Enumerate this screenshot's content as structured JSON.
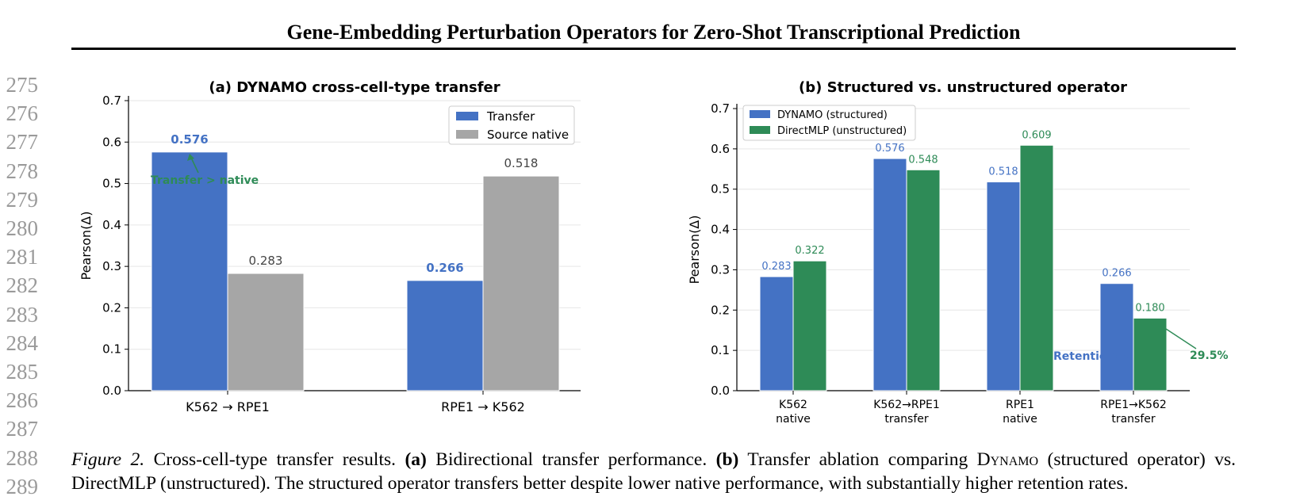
{
  "header": {
    "title": "Gene-Embedding Perturbation Operators for Zero-Shot Transcriptional Prediction"
  },
  "line_numbers": [
    "275",
    "276",
    "277",
    "278",
    "279",
    "280",
    "281",
    "282",
    "283",
    "284",
    "285",
    "286",
    "287",
    "288",
    "289"
  ],
  "caption": {
    "figure_label": "Figure 2.",
    "lead": "Cross-cell-type transfer results.",
    "part_a_label": "(a)",
    "part_a_text": "Bidirectional transfer performance.",
    "part_b_label": "(b)",
    "part_b_text_1": "Transfer ablation comparing",
    "dynamo_D": "D",
    "dynamo_rest": "ynamo",
    "part_b_text_2": "(structured operator) vs. DirectMLP (unstructured). The structured operator transfers better despite lower native performance, with substantially higher retention rates."
  },
  "colors": {
    "blue": "#4472c4",
    "gray": "#a6a6a6",
    "green": "#2e8b57",
    "blue_text": "#4472c4",
    "green_text": "#2e8b57"
  },
  "chart_data": [
    {
      "type": "bar",
      "title": "(a) DYNAMO cross-cell-type transfer",
      "ylabel": "Pearson(Δ)",
      "ylim": [
        0,
        0.7
      ],
      "yticks": [
        "0.0",
        "0.1",
        "0.2",
        "0.3",
        "0.4",
        "0.5",
        "0.6",
        "0.7"
      ],
      "categories": [
        "K562 → RPE1",
        "RPE1 → K562"
      ],
      "series": [
        {
          "name": "Transfer",
          "values": [
            0.576,
            0.266
          ],
          "labels": [
            "0.576",
            "0.266"
          ]
        },
        {
          "name": "Source native",
          "values": [
            0.283,
            0.518
          ],
          "labels": [
            "0.283",
            "0.518"
          ]
        }
      ],
      "annotation": "Transfer > native",
      "legend": "top-right"
    },
    {
      "type": "bar",
      "title": "(b) Structured vs. unstructured operator",
      "ylabel": "Pearson(Δ)",
      "ylim": [
        0,
        0.7
      ],
      "yticks": [
        "0.0",
        "0.1",
        "0.2",
        "0.3",
        "0.4",
        "0.5",
        "0.6",
        "0.7"
      ],
      "categories": [
        [
          "K562",
          "native"
        ],
        [
          "K562→RPE1",
          "transfer"
        ],
        [
          "RPE1",
          "native"
        ],
        [
          "RPE1→K562",
          "transfer"
        ]
      ],
      "series": [
        {
          "name": "DYNAMO (structured)",
          "values": [
            0.283,
            0.576,
            0.518,
            0.266
          ],
          "labels": [
            "0.283",
            "0.576",
            "0.518",
            "0.266"
          ]
        },
        {
          "name": "DirectMLP (unstructured)",
          "values": [
            0.322,
            0.548,
            0.609,
            0.18
          ],
          "labels": [
            "0.322",
            "0.548",
            "0.609",
            "0.180"
          ]
        }
      ],
      "annotations": [
        "Retention: 51.4%",
        "29.5%"
      ],
      "legend": "top-left"
    }
  ]
}
